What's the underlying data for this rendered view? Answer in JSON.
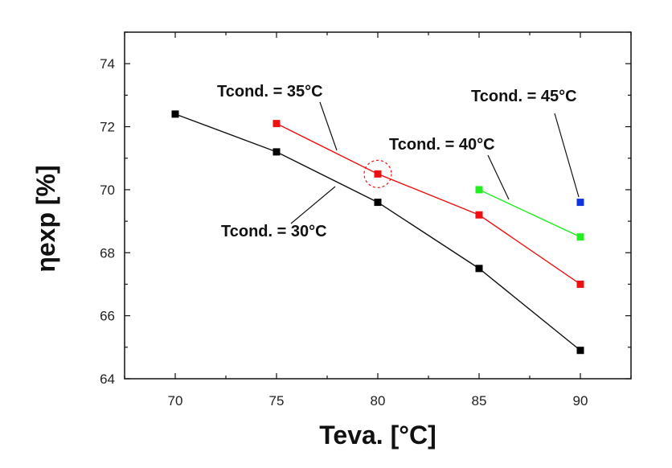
{
  "chart_data": {
    "type": "line",
    "title": "",
    "xlabel": "Teva. [°C]",
    "ylabel": "ηexp [%]",
    "xlim": [
      67.5,
      92.5
    ],
    "ylim": [
      64,
      75
    ],
    "x_ticks": [
      70,
      75,
      80,
      85,
      90
    ],
    "y_ticks": [
      64,
      66,
      68,
      70,
      72,
      74
    ],
    "grid": false,
    "series": [
      {
        "name": "Tcond. = 30°C",
        "color": "#000000",
        "x": [
          70,
          75,
          80,
          85,
          90
        ],
        "y": [
          72.4,
          71.2,
          69.6,
          67.5,
          64.9
        ]
      },
      {
        "name": "Tcond. = 35°C",
        "color": "#ee1111",
        "x": [
          75,
          80,
          85,
          90
        ],
        "y": [
          72.1,
          70.5,
          69.2,
          67.0
        ]
      },
      {
        "name": "Tcond. = 40°C",
        "color": "#22ee22",
        "x": [
          85,
          90
        ],
        "y": [
          70.0,
          68.5
        ]
      },
      {
        "name": "Tcond. = 45°C",
        "color": "#1133dd",
        "x": [
          90
        ],
        "y": [
          69.6
        ]
      }
    ],
    "highlight": {
      "x": 80,
      "y": 70.5,
      "color": "#ee1111"
    }
  }
}
